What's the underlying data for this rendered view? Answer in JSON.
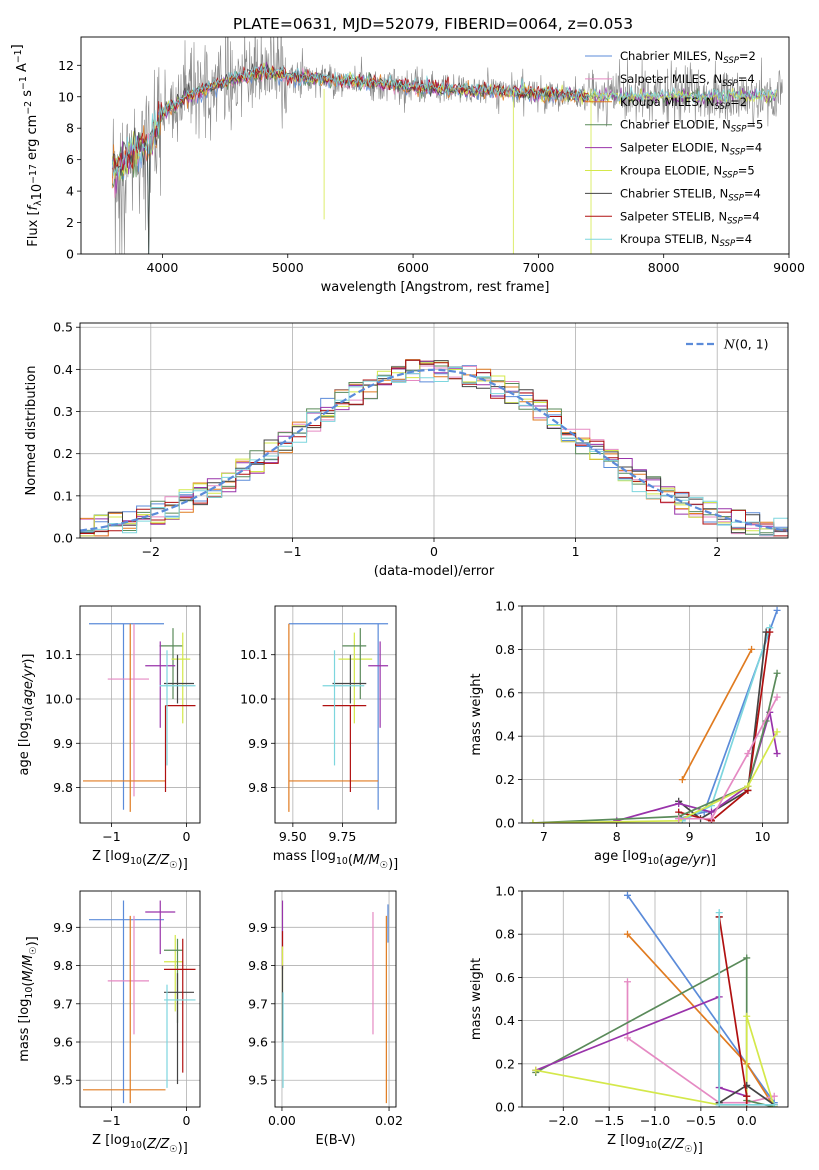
{
  "figure_title": "PLATE=0631, MJD=52079, FIBERID=0064, z=0.053",
  "colors": {
    "chabrier_miles": "#5b8bd9",
    "salpeter_miles": "#e58ac3",
    "kroupa_miles": "#e07b20",
    "chabrier_elodie": "#5a8a5a",
    "salpeter_elodie": "#9933aa",
    "kroupa_elodie": "#d4e84a",
    "chabrier_stelib": "#444444",
    "salpeter_stelib": "#b01010",
    "kroupa_stelib": "#7dd6de",
    "data": "#888888",
    "grid": "#b0b0b0"
  },
  "chart_data": [
    {
      "id": "spectrum",
      "type": "line",
      "xlabel": "wavelength [Angstrom, rest frame]",
      "ylabel": "Flux [f_λ10^-17 erg cm^-2 s^-1 A^-1]",
      "xlim": [
        3350,
        9000
      ],
      "ylim": [
        0,
        13.8
      ],
      "xticks": [
        4000,
        5000,
        6000,
        7000,
        8000,
        9000
      ],
      "yticks": [
        0,
        2,
        4,
        6,
        8,
        10,
        12
      ],
      "grid": false,
      "legend_position": "right",
      "model_trend": {
        "x": [
          3600,
          3700,
          3800,
          3900,
          4000,
          4200,
          4500,
          4800,
          5100,
          5500,
          6000,
          6500,
          7000,
          7400
        ],
        "y": [
          5.5,
          6.0,
          6.5,
          7.0,
          9.0,
          10.0,
          11.0,
          11.6,
          11.2,
          11.0,
          10.6,
          10.4,
          10.2,
          10.0
        ]
      },
      "series": [
        {
          "name": "Chabrier MILES, N_SSP=2",
          "color_key": "chabrier_miles"
        },
        {
          "name": "Salpeter MILES, N_SSP=4",
          "color_key": "salpeter_miles"
        },
        {
          "name": "Kroupa MILES, N_SSP=2",
          "color_key": "kroupa_miles"
        },
        {
          "name": "Chabrier ELODIE, N_SSP=5",
          "color_key": "chabrier_elodie"
        },
        {
          "name": "Salpeter ELODIE, N_SSP=4",
          "color_key": "salpeter_elodie"
        },
        {
          "name": "Kroupa ELODIE, N_SSP=5",
          "color_key": "kroupa_elodie"
        },
        {
          "name": "Chabrier STELIB, N_SSP=4",
          "color_key": "chabrier_stelib"
        },
        {
          "name": "Salpeter STELIB, N_SSP=4",
          "color_key": "salpeter_stelib"
        },
        {
          "name": "Kroupa STELIB, N_SSP=4",
          "color_key": "kroupa_stelib"
        }
      ]
    },
    {
      "id": "residuals",
      "type": "line",
      "xlabel": "(data-model)/error",
      "ylabel": "Normed distribution",
      "xlim": [
        -2.5,
        2.5
      ],
      "ylim": [
        0,
        0.51
      ],
      "xticks": [
        -2,
        -1,
        0,
        1,
        2
      ],
      "xticklabels": [
        "−2",
        "−1",
        "0",
        "1",
        "2"
      ],
      "yticks": [
        0,
        0.1,
        0.2,
        0.3,
        0.4,
        0.5
      ],
      "yticklabels": [
        "0.0",
        "0.1",
        "0.2",
        "0.3",
        "0.4",
        "0.5"
      ],
      "grid": true,
      "legend_position": "top-right",
      "reference_label": "N(0,1)",
      "bin_width": 0.1
    },
    {
      "id": "age_vs_Z",
      "type": "scatter",
      "xlabel": "Z [log10(Z/Z☉)]",
      "ylabel": "age  [log10(age/yr)]",
      "xlim": [
        -1.42,
        0.18
      ],
      "ylim": [
        9.72,
        10.21
      ],
      "xticks": [
        -1,
        0
      ],
      "xticklabels": [
        "−1",
        "0"
      ],
      "yticks": [
        9.8,
        9.9,
        10.0,
        10.1
      ],
      "yticklabels": [
        "9.8",
        "9.9",
        "10.0",
        "10.1"
      ],
      "grid": true,
      "points": [
        {
          "c": "chabrier_miles",
          "x": -0.84,
          "xlo": -1.3,
          "xhi": -0.3,
          "y": 10.17,
          "ylo": 9.75,
          "yhi": 10.17
        },
        {
          "c": "salpeter_miles",
          "x": -0.7,
          "xlo": -1.05,
          "xhi": -0.5,
          "y": 10.045,
          "ylo": 9.78,
          "yhi": 10.17
        },
        {
          "c": "kroupa_miles",
          "x": -0.75,
          "xlo": -1.38,
          "xhi": -0.28,
          "y": 9.815,
          "ylo": 9.745,
          "yhi": 10.17
        },
        {
          "c": "chabrier_elodie",
          "x": -0.18,
          "xlo": -0.36,
          "xhi": -0.05,
          "y": 10.12,
          "ylo": 10.0,
          "yhi": 10.16
        },
        {
          "c": "salpeter_elodie",
          "x": -0.35,
          "xlo": -0.55,
          "xhi": -0.15,
          "y": 10.075,
          "ylo": 9.935,
          "yhi": 10.13
        },
        {
          "c": "kroupa_elodie",
          "x": -0.05,
          "xlo": -0.2,
          "xhi": 0.05,
          "y": 10.09,
          "ylo": 9.945,
          "yhi": 10.15
        },
        {
          "c": "chabrier_stelib",
          "x": -0.12,
          "xlo": -0.3,
          "xhi": 0.1,
          "y": 10.035,
          "ylo": 9.99,
          "yhi": 10.1
        },
        {
          "c": "salpeter_stelib",
          "x": -0.28,
          "xlo": -0.28,
          "xhi": 0.12,
          "y": 9.985,
          "ylo": 9.79,
          "yhi": 9.985
        },
        {
          "c": "kroupa_stelib",
          "x": -0.26,
          "xlo": -0.36,
          "xhi": 0.12,
          "y": 10.03,
          "ylo": 9.85,
          "yhi": 10.11
        }
      ]
    },
    {
      "id": "age_vs_mass",
      "type": "scatter",
      "xlabel": "mass [log10(M/M☉)]",
      "ylabel": "",
      "xlim": [
        9.41,
        10.02
      ],
      "ylim": [
        9.72,
        10.21
      ],
      "xticks": [
        9.5,
        9.75
      ],
      "xticklabels": [
        "9.50",
        "9.75"
      ],
      "yticks": [
        9.8,
        9.9,
        10.0,
        10.1
      ],
      "yticklabels": [
        "9.8",
        "9.9",
        "10.0",
        "10.1"
      ],
      "grid": true,
      "points": [
        {
          "c": "chabrier_miles",
          "x": 9.93,
          "xlo": 9.48,
          "xhi": 9.98,
          "y": 10.17,
          "ylo": 9.75,
          "yhi": 10.17
        },
        {
          "c": "kroupa_miles",
          "x": 9.48,
          "xlo": 9.48,
          "xhi": 9.93,
          "y": 9.815,
          "ylo": 9.745,
          "yhi": 10.17
        },
        {
          "c": "salpeter_elodie",
          "x": 9.94,
          "xlo": 9.88,
          "xhi": 9.98,
          "y": 10.075,
          "ylo": 9.935,
          "yhi": 10.13
        },
        {
          "c": "kroupa_elodie",
          "x": 9.81,
          "xlo": 9.73,
          "xhi": 9.9,
          "y": 10.09,
          "ylo": 9.945,
          "yhi": 10.15
        },
        {
          "c": "chabrier_elodie",
          "x": 9.84,
          "xlo": 9.75,
          "xhi": 9.87,
          "y": 10.12,
          "ylo": 10.0,
          "yhi": 10.16
        },
        {
          "c": "chabrier_stelib",
          "x": 9.79,
          "xlo": 9.7,
          "xhi": 9.87,
          "y": 10.035,
          "ylo": 9.99,
          "yhi": 10.1
        },
        {
          "c": "salpeter_stelib",
          "x": 9.79,
          "xlo": 9.65,
          "xhi": 9.87,
          "y": 9.985,
          "ylo": 9.79,
          "yhi": 9.985
        },
        {
          "c": "kroupa_stelib",
          "x": 9.71,
          "xlo": 9.65,
          "xhi": 9.86,
          "y": 10.03,
          "ylo": 9.85,
          "yhi": 10.11
        }
      ]
    },
    {
      "id": "weight_vs_age",
      "type": "line",
      "xlabel": "age  [log10(age/yr)]",
      "ylabel": "mass weight",
      "xlim": [
        6.7,
        10.35
      ],
      "ylim": [
        0,
        1.0
      ],
      "xticks": [
        7,
        8,
        9,
        10
      ],
      "xticklabels": [
        "7",
        "8",
        "9",
        "10"
      ],
      "yticks": [
        0,
        0.2,
        0.4,
        0.6,
        0.8,
        1.0
      ],
      "yticklabels": [
        "0.0",
        "0.2",
        "0.4",
        "0.6",
        "0.8",
        "1.0"
      ],
      "grid": true,
      "series": [
        {
          "c": "kroupa_miles",
          "x": [
            8.9,
            9.85
          ],
          "y": [
            0.2,
            0.8
          ]
        },
        {
          "c": "chabrier_miles",
          "x": [
            8.85,
            9.2,
            10.2
          ],
          "y": [
            0.02,
            0.05,
            0.98
          ]
        },
        {
          "c": "kroupa_stelib",
          "x": [
            8.9,
            9.3,
            10.1
          ],
          "y": [
            0.01,
            0.08,
            0.9
          ]
        },
        {
          "c": "chabrier_stelib",
          "x": [
            8.85,
            9.15,
            9.8,
            10.05
          ],
          "y": [
            0.1,
            0.02,
            0.15,
            0.88
          ]
        },
        {
          "c": "salpeter_stelib",
          "x": [
            8.85,
            9.3,
            9.8,
            10.1
          ],
          "y": [
            0.05,
            0.01,
            0.15,
            0.88
          ]
        },
        {
          "c": "salpeter_elodie",
          "x": [
            8.0,
            8.85,
            9.3,
            9.8,
            10.1,
            10.2
          ],
          "y": [
            0.01,
            0.09,
            0.05,
            0.17,
            0.51,
            0.32
          ]
        },
        {
          "c": "chabrier_elodie",
          "x": [
            6.85,
            8.85,
            9.8,
            10.05,
            10.2
          ],
          "y": [
            0.0,
            0.03,
            0.17,
            0.47,
            0.69
          ]
        },
        {
          "c": "kroupa_elodie",
          "x": [
            6.85,
            8.85,
            9.8,
            10.2
          ],
          "y": [
            0.0,
            0.01,
            0.17,
            0.42
          ]
        },
        {
          "c": "salpeter_miles",
          "x": [
            8.85,
            9.3,
            9.8,
            10.2
          ],
          "y": [
            0.02,
            0.02,
            0.32,
            0.58
          ]
        }
      ]
    },
    {
      "id": "mass_vs_Z",
      "type": "scatter",
      "xlabel": "Z [log10(Z/Z☉)]",
      "ylabel": "mass [log10(M/M☉)]",
      "xlim": [
        -1.42,
        0.18
      ],
      "ylim": [
        9.43,
        9.995
      ],
      "xticks": [
        -1,
        0
      ],
      "xticklabels": [
        "−1",
        "0"
      ],
      "yticks": [
        9.5,
        9.6,
        9.7,
        9.8,
        9.9
      ],
      "yticklabels": [
        "9.5",
        "9.6",
        "9.7",
        "9.8",
        "9.9"
      ],
      "grid": true,
      "points": [
        {
          "c": "chabrier_miles",
          "x": -0.84,
          "xlo": -1.3,
          "xhi": -0.3,
          "y": 9.92,
          "ylo": 9.44,
          "yhi": 9.97
        },
        {
          "c": "salpeter_miles",
          "x": -0.7,
          "xlo": -1.05,
          "xhi": -0.5,
          "y": 9.76,
          "ylo": 9.62,
          "yhi": 9.93
        },
        {
          "c": "kroupa_miles",
          "x": -0.75,
          "xlo": -1.38,
          "xhi": -0.28,
          "y": 9.475,
          "ylo": 9.44,
          "yhi": 9.93
        },
        {
          "c": "salpeter_elodie",
          "x": -0.35,
          "xlo": -0.55,
          "xhi": -0.15,
          "y": 9.94,
          "ylo": 9.83,
          "yhi": 9.97
        },
        {
          "c": "kroupa_elodie",
          "x": -0.15,
          "xlo": -0.3,
          "xhi": -0.05,
          "y": 9.81,
          "ylo": 9.68,
          "yhi": 9.88
        },
        {
          "c": "chabrier_elodie",
          "x": -0.12,
          "xlo": -0.3,
          "xhi": -0.05,
          "y": 9.84,
          "ylo": 9.65,
          "yhi": 9.87
        },
        {
          "c": "chabrier_stelib",
          "x": -0.12,
          "xlo": -0.3,
          "xhi": 0.1,
          "y": 9.73,
          "ylo": 9.49,
          "yhi": 9.78
        },
        {
          "c": "salpeter_stelib",
          "x": -0.05,
          "xlo": -0.3,
          "xhi": 0.12,
          "y": 9.79,
          "ylo": 9.52,
          "yhi": 9.87
        },
        {
          "c": "kroupa_stelib",
          "x": -0.26,
          "xlo": -0.3,
          "xhi": 0.12,
          "y": 9.71,
          "ylo": 9.48,
          "yhi": 9.75
        }
      ]
    },
    {
      "id": "mass_vs_ebv",
      "type": "scatter",
      "xlabel": "E(B-V)",
      "ylabel": "",
      "xlim": [
        -0.0013,
        0.0213
      ],
      "ylim": [
        9.43,
        9.995
      ],
      "xticks": [
        0.0,
        0.02
      ],
      "xticklabels": [
        "0.00",
        "0.02"
      ],
      "yticks": [
        9.5,
        9.6,
        9.7,
        9.8,
        9.9
      ],
      "yticklabels": [
        "9.5",
        "9.6",
        "9.7",
        "9.8",
        "9.9"
      ],
      "grid": true,
      "points": [
        {
          "c": "salpeter_elodie",
          "x": 0.0001,
          "y": 9.92,
          "ylo": 9.85,
          "yhi": 9.97
        },
        {
          "c": "salpeter_stelib",
          "x": 0.0001,
          "y": 9.84,
          "ylo": 9.79,
          "yhi": 9.89
        },
        {
          "c": "kroupa_elodie",
          "x": 0.0001,
          "y": 9.75,
          "ylo": 9.65,
          "yhi": 9.85
        },
        {
          "c": "chabrier_stelib",
          "x": 0.0001,
          "y": 9.72,
          "ylo": 9.6,
          "yhi": 9.8
        },
        {
          "c": "kroupa_stelib",
          "x": 0.0002,
          "y": 9.6,
          "ylo": 9.48,
          "yhi": 9.73
        },
        {
          "c": "salpeter_miles",
          "x": 0.017,
          "y": 9.78,
          "ylo": 9.62,
          "yhi": 9.94
        },
        {
          "c": "kroupa_miles",
          "x": 0.0195,
          "y": 9.6,
          "ylo": 9.44,
          "yhi": 9.93
        },
        {
          "c": "chabrier_miles",
          "x": 0.0198,
          "y": 9.92,
          "ylo": 9.86,
          "yhi": 9.96
        }
      ]
    },
    {
      "id": "weight_vs_Z",
      "type": "line",
      "xlabel": "Z [log10(Z/Z☉)]",
      "ylabel": "mass weight",
      "xlim": [
        -2.45,
        0.45
      ],
      "ylim": [
        0,
        1.0
      ],
      "xticks": [
        -2.0,
        -1.5,
        -1.0,
        -0.5,
        0.0
      ],
      "xticklabels": [
        "−2.0",
        "−1.5",
        "−1.0",
        "−0.5",
        "0.0"
      ],
      "yticks": [
        0,
        0.2,
        0.4,
        0.6,
        0.8,
        1.0
      ],
      "yticklabels": [
        "0.0",
        "0.2",
        "0.4",
        "0.6",
        "0.8",
        "1.0"
      ],
      "grid": true,
      "series": [
        {
          "c": "chabrier_miles",
          "x": [
            -1.3,
            0.3
          ],
          "y": [
            0.98,
            0.02
          ]
        },
        {
          "c": "kroupa_miles",
          "x": [
            -1.3,
            0.0,
            0.3
          ],
          "y": [
            0.8,
            0.2,
            0.0
          ]
        },
        {
          "c": "salpeter_miles",
          "x": [
            -1.3,
            -1.3,
            -0.3,
            0.0,
            0.3
          ],
          "y": [
            0.58,
            0.32,
            0.02,
            0.02,
            0.05
          ]
        },
        {
          "c": "chabrier_elodie",
          "x": [
            -2.3,
            0.0,
            0.0,
            0.3
          ],
          "y": [
            0.16,
            0.69,
            0.03,
            0.0
          ]
        },
        {
          "c": "salpeter_elodie",
          "x": [
            -2.3,
            -0.3,
            -0.3,
            0.0
          ],
          "y": [
            0.17,
            0.51,
            0.09,
            0.05
          ]
        },
        {
          "c": "kroupa_elodie",
          "x": [
            -2.3,
            -0.3,
            0.0,
            0.0,
            0.3
          ],
          "y": [
            0.17,
            0.01,
            0.01,
            0.42,
            0.0
          ]
        },
        {
          "c": "chabrier_stelib",
          "x": [
            -0.3,
            -0.3,
            0.0,
            0.3
          ],
          "y": [
            0.88,
            0.02,
            0.1,
            0.01
          ]
        },
        {
          "c": "salpeter_stelib",
          "x": [
            -0.3,
            0.0,
            0.0
          ],
          "y": [
            0.88,
            0.05,
            0.01
          ]
        },
        {
          "c": "kroupa_stelib",
          "x": [
            -0.3,
            -0.3,
            0.3
          ],
          "y": [
            0.9,
            0.01,
            0.01
          ]
        }
      ]
    }
  ]
}
